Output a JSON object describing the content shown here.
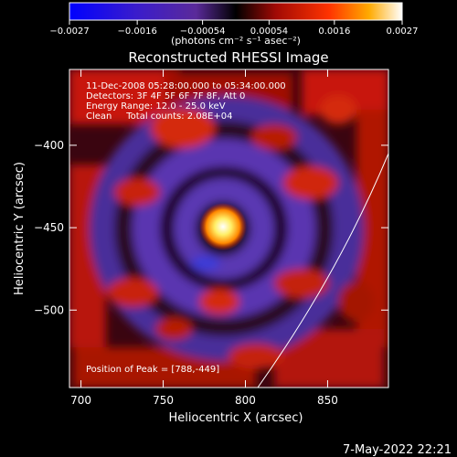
{
  "colorbar": {
    "ticks": [
      "-0.0027",
      "-0.0016",
      "-0.00054",
      "0.00054",
      "0.0016",
      "0.0027"
    ],
    "unit_label": "(photons cm⁻² s⁻¹ asec⁻²)"
  },
  "chart_data": {
    "type": "heatmap",
    "title": "Reconstructed RHESSI Image",
    "xlabel": "Heliocentric X (arcsec)",
    "ylabel": "Heliocentric Y (arcsec)",
    "xlim": [
      693,
      887
    ],
    "ylim": [
      -547,
      -354
    ],
    "x_ticks": [
      700,
      750,
      800,
      850
    ],
    "y_ticks": [
      -400,
      -450,
      -500
    ],
    "x_tick_labels": [
      "700",
      "750",
      "800",
      "850"
    ],
    "y_tick_labels": [
      "−400",
      "−450",
      "−500"
    ],
    "color_range": [
      -0.0027,
      0.0027
    ],
    "peak": {
      "x": 788,
      "y": -449
    },
    "annotations": [
      "11-Dec-2008 05:28:00.000 to 05:34:00.000",
      "Detectors: 3F 4F 5F 6F 7F 8F, Att 0",
      "Energy Range: 12.0 - 25.0 keV",
      "Clean     Total counts: 2.08E+04"
    ],
    "peak_label": "Position of Peak = [788,-449]"
  },
  "footer": {
    "date": "7-May-2022 22:21"
  },
  "colors": {
    "background": "#000000",
    "text": "#ffffff"
  }
}
